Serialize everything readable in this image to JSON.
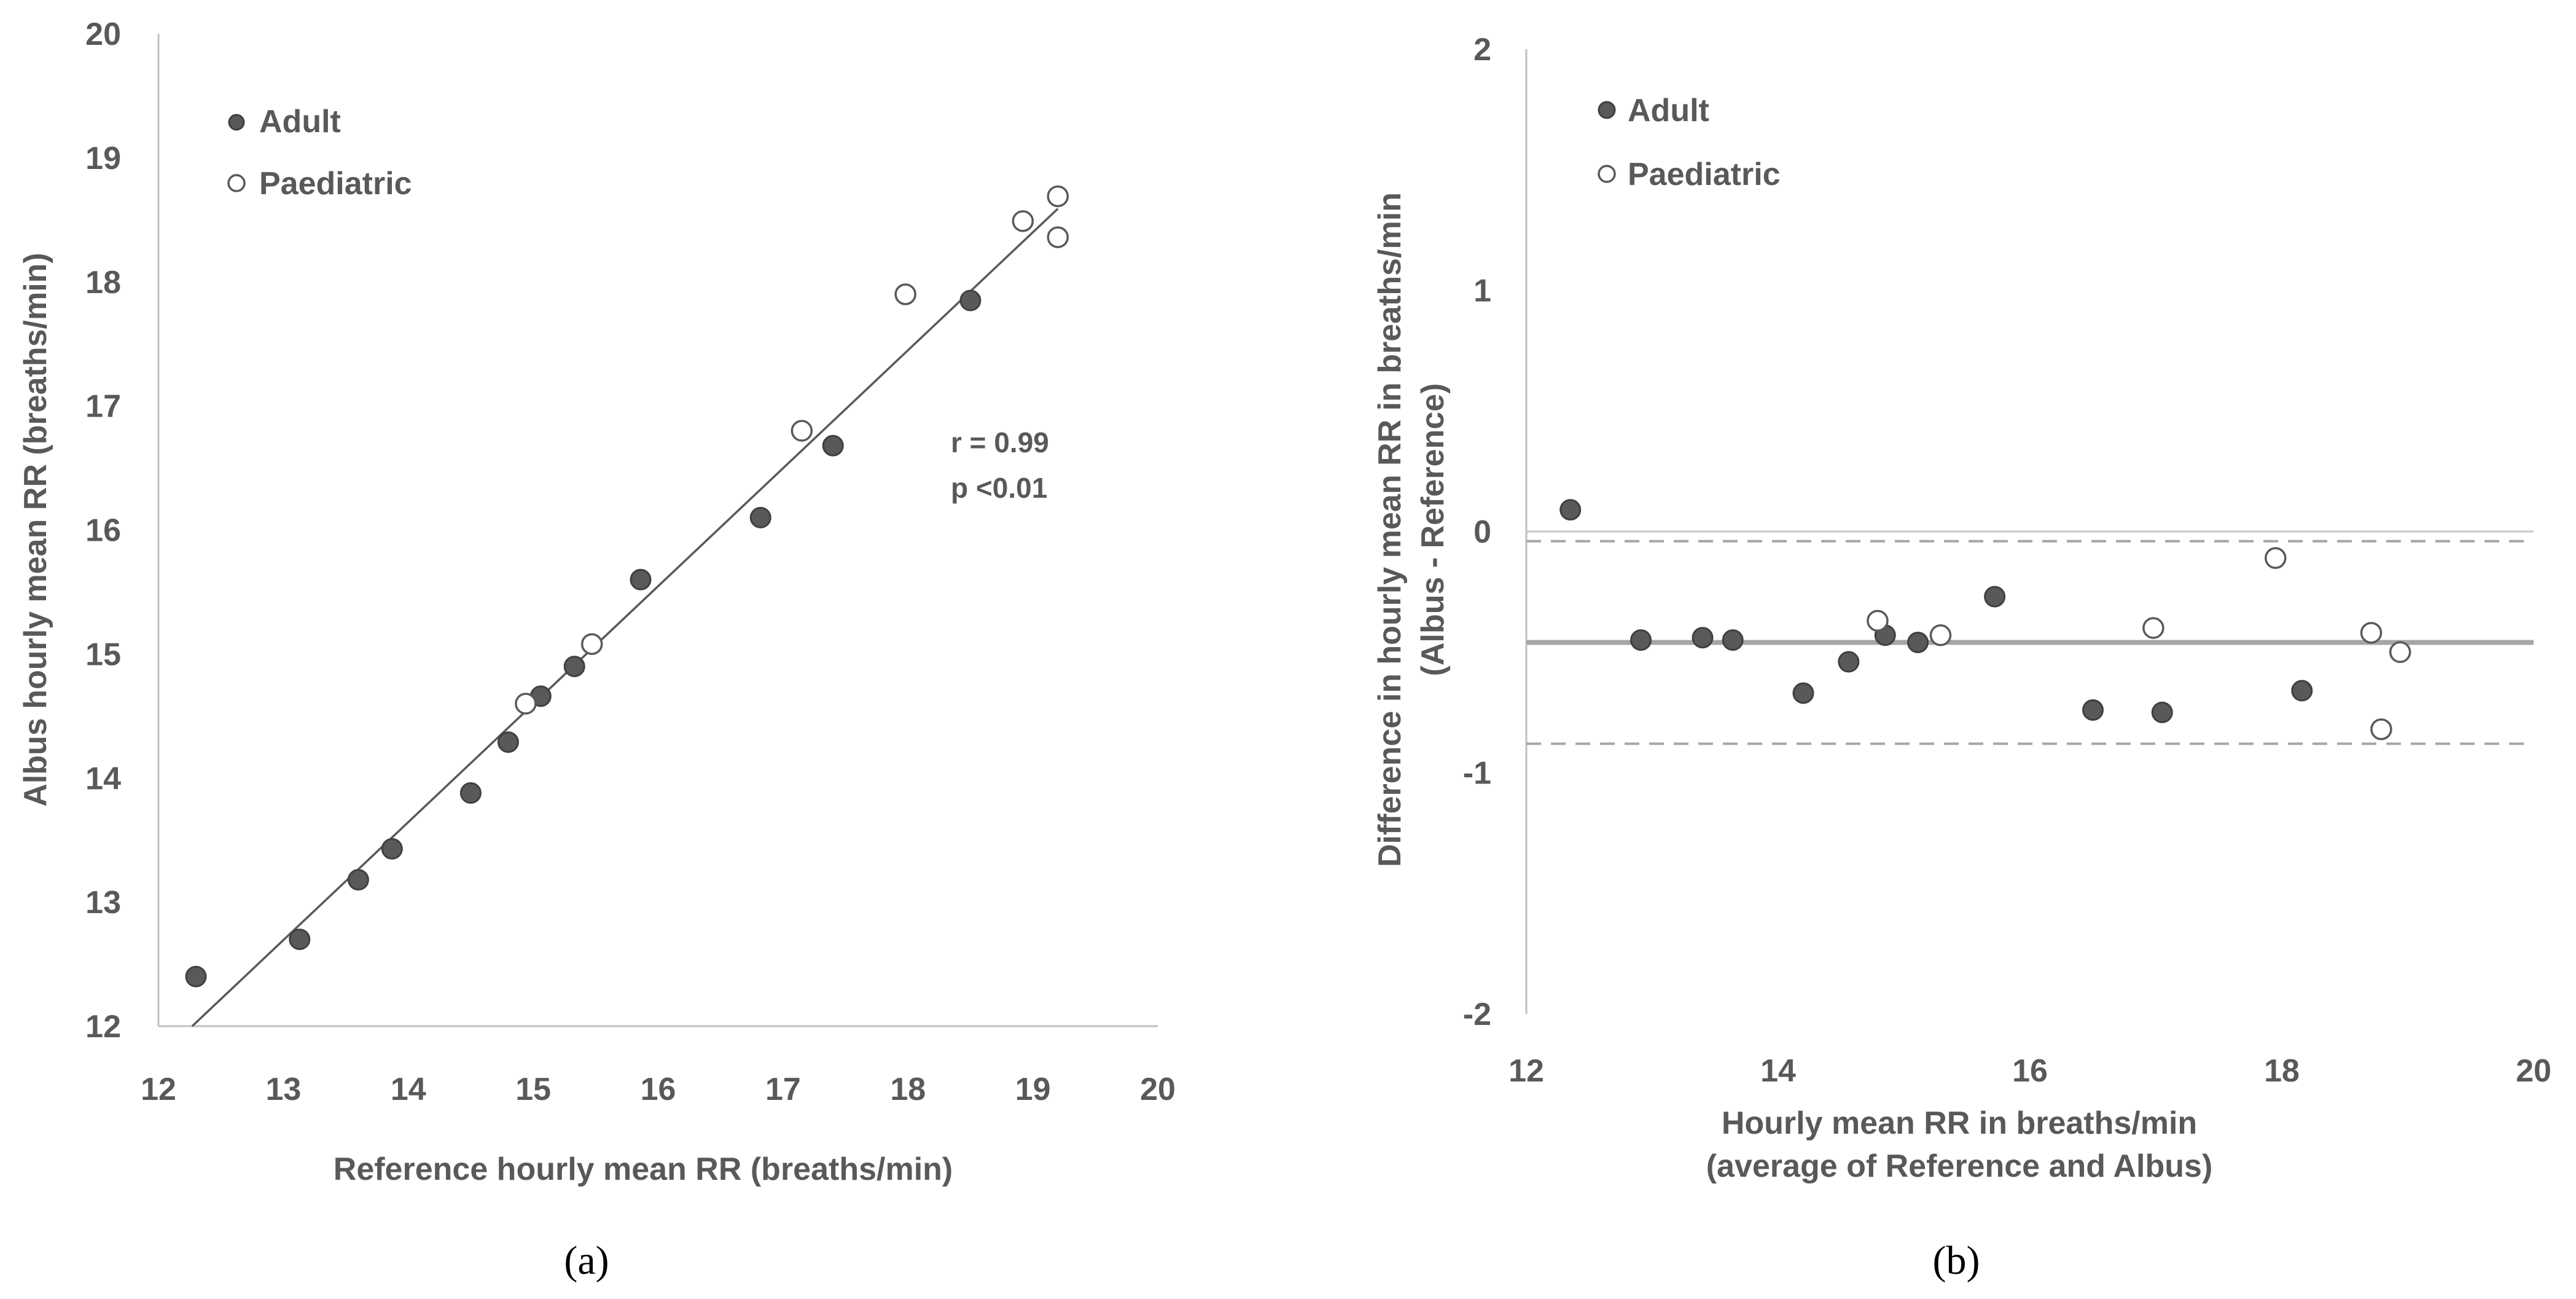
{
  "chart_data": [
    {
      "type": "scatter",
      "panel": "a",
      "caption": "(a)",
      "xlabel": "Reference hourly mean RR (breaths/min)",
      "ylabel": "Albus hourly mean RR (breaths/min)",
      "xlim": [
        12,
        20
      ],
      "ylim": [
        12,
        20
      ],
      "xticks": [
        "12",
        "13",
        "14",
        "15",
        "16",
        "17",
        "18",
        "19",
        "20"
      ],
      "yticks": [
        "12",
        "13",
        "14",
        "15",
        "16",
        "17",
        "18",
        "19",
        "20"
      ],
      "legend_placement": "top-left",
      "series": [
        {
          "name": "Adult",
          "marker": "filled",
          "points": [
            [
              12.3,
              12.4
            ],
            [
              13.13,
              12.7
            ],
            [
              13.6,
              13.18
            ],
            [
              13.87,
              13.43
            ],
            [
              14.5,
              13.88
            ],
            [
              14.8,
              14.29
            ],
            [
              15.06,
              14.66
            ],
            [
              15.33,
              14.9
            ],
            [
              15.86,
              15.6
            ],
            [
              16.82,
              16.1
            ],
            [
              17.4,
              16.68
            ],
            [
              18.5,
              17.85
            ]
          ]
        },
        {
          "name": "Paediatric",
          "marker": "open",
          "points": [
            [
              14.94,
              14.6
            ],
            [
              15.47,
              15.08
            ],
            [
              17.15,
              16.8
            ],
            [
              17.98,
              17.9
            ],
            [
              18.92,
              18.49
            ],
            [
              19.2,
              18.69
            ],
            [
              19.2,
              18.36
            ]
          ]
        }
      ],
      "fit_line": {
        "x1": 12.27,
        "y1": 12.0,
        "x2": 19.2,
        "y2": 18.59
      },
      "annotations": [
        "r = 0.99",
        "p <0.01"
      ]
    },
    {
      "type": "scatter",
      "panel": "b",
      "caption": "(b)",
      "xlabel": [
        "Hourly mean RR in breaths/min",
        "(average of Reference and Albus)"
      ],
      "ylabel": [
        "Difference in hourly mean RR in breaths/min",
        "(Albus - Reference)"
      ],
      "xlim": [
        12,
        20
      ],
      "ylim": [
        -2,
        2
      ],
      "xticks": [
        "12",
        "14",
        "16",
        "18",
        "20"
      ],
      "yticks": [
        "-2",
        "-1",
        "0",
        "1",
        "2"
      ],
      "legend_placement": "top-left",
      "series": [
        {
          "name": "Adult",
          "marker": "filled",
          "points": [
            [
              12.35,
              0.09
            ],
            [
              12.91,
              -0.45
            ],
            [
              13.4,
              -0.44
            ],
            [
              13.64,
              -0.45
            ],
            [
              14.2,
              -0.67
            ],
            [
              14.56,
              -0.54
            ],
            [
              14.85,
              -0.43
            ],
            [
              15.11,
              -0.46
            ],
            [
              15.72,
              -0.27
            ],
            [
              16.5,
              -0.74
            ],
            [
              17.05,
              -0.75
            ],
            [
              18.16,
              -0.66
            ]
          ]
        },
        {
          "name": "Paediatric",
          "marker": "open",
          "points": [
            [
              14.79,
              -0.37
            ],
            [
              15.29,
              -0.43
            ],
            [
              16.98,
              -0.4
            ],
            [
              17.95,
              -0.11
            ],
            [
              18.71,
              -0.42
            ],
            [
              18.94,
              -0.5
            ],
            [
              18.79,
              -0.82
            ]
          ]
        }
      ],
      "reference_lines": [
        {
          "name": "zero",
          "y": 0,
          "style": "solid-light"
        },
        {
          "name": "mean_difference",
          "y": -0.46,
          "style": "solid"
        },
        {
          "name": "upper_limit_of_agreement",
          "y": -0.04,
          "style": "dashed"
        },
        {
          "name": "lower_limit_of_agreement",
          "y": -0.88,
          "style": "dashed"
        }
      ]
    }
  ]
}
